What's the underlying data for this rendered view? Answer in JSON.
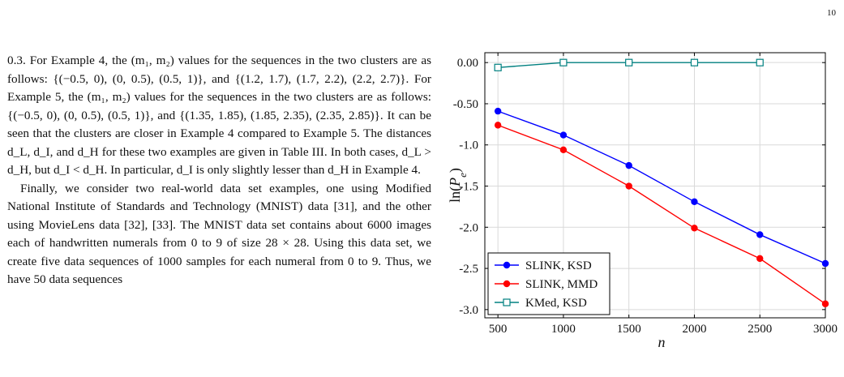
{
  "page": {
    "number": "10"
  },
  "text": {
    "paragraphs": [
      "0.3. For Example 4, the (m₁, m₂) values for the sequences in the two clusters are as follows: {(−0.5, 0), (0, 0.5), (0.5, 1)}, and {(1.2, 1.7), (1.7, 2.2), (2.2, 2.7)}. For Example 5, the (m₁, m₂) values for the sequences in the two clusters are as follows: {(−0.5, 0), (0, 0.5), (0.5, 1)}, and {(1.35, 1.85), (1.85, 2.35), (2.35, 2.85)}. It can be seen that the clusters are closer in Example 4 compared to Example 5. The distances d_L, d_I, and d_H for these two examples are given in Table III. In both cases, d_L > d_H, but d_I < d_H. In particular, d_I is only slightly lesser than d_H in Example 4.",
      "Finally, we consider two real-world data set examples, one using Modified National Institute of Standards and Technology (MNIST) data [31], and the other using MovieLens data [32], [33]. The MNIST data set contains about 6000 images each of handwritten numerals from 0 to 9 of size 28 × 28. Using this data set, we create five data sequences of 1000 samples for each numeral from 0 to 9. Thus, we have 50 data sequences"
    ]
  },
  "chart_data": {
    "type": "line",
    "xlabel": "n",
    "ylabel": "ln(P_e)",
    "xlim": [
      400,
      3000
    ],
    "ylim": [
      -3.1,
      0.12
    ],
    "xticks": [
      500,
      1000,
      1500,
      2000,
      2500,
      3000
    ],
    "xtick_labels": [
      "500",
      "1000",
      "1500",
      "2000",
      "2500",
      "3000"
    ],
    "yticks": [
      0,
      -0.5,
      -1,
      -1.5,
      -2,
      -2.5,
      -3
    ],
    "ytick_labels": [
      "0.00",
      "-0.50",
      "-1.0",
      "-1.5",
      "-2.0",
      "-2.5",
      "-3.0"
    ],
    "grid": true,
    "legend_position": "bottom-left",
    "series": [
      {
        "name": "SLINK, KSD",
        "color": "#0000ff",
        "marker": "filled-circle",
        "x": [
          500,
          1000,
          1500,
          2000,
          2500,
          3000
        ],
        "values": [
          -0.59,
          -0.88,
          -1.25,
          -1.69,
          -2.09,
          -2.44
        ]
      },
      {
        "name": "SLINK, MMD",
        "color": "#ff0000",
        "marker": "filled-circle",
        "x": [
          500,
          1000,
          1500,
          2000,
          2500,
          3000
        ],
        "values": [
          -0.76,
          -1.06,
          -1.5,
          -2.01,
          -2.38,
          -2.93
        ]
      },
      {
        "name": "KMed, KSD",
        "color": "#008080",
        "marker": "open-square",
        "x": [
          500,
          1000,
          1500,
          2000,
          2500
        ],
        "values": [
          -0.06,
          0.0,
          0.0,
          0.0,
          0.0
        ]
      }
    ]
  }
}
